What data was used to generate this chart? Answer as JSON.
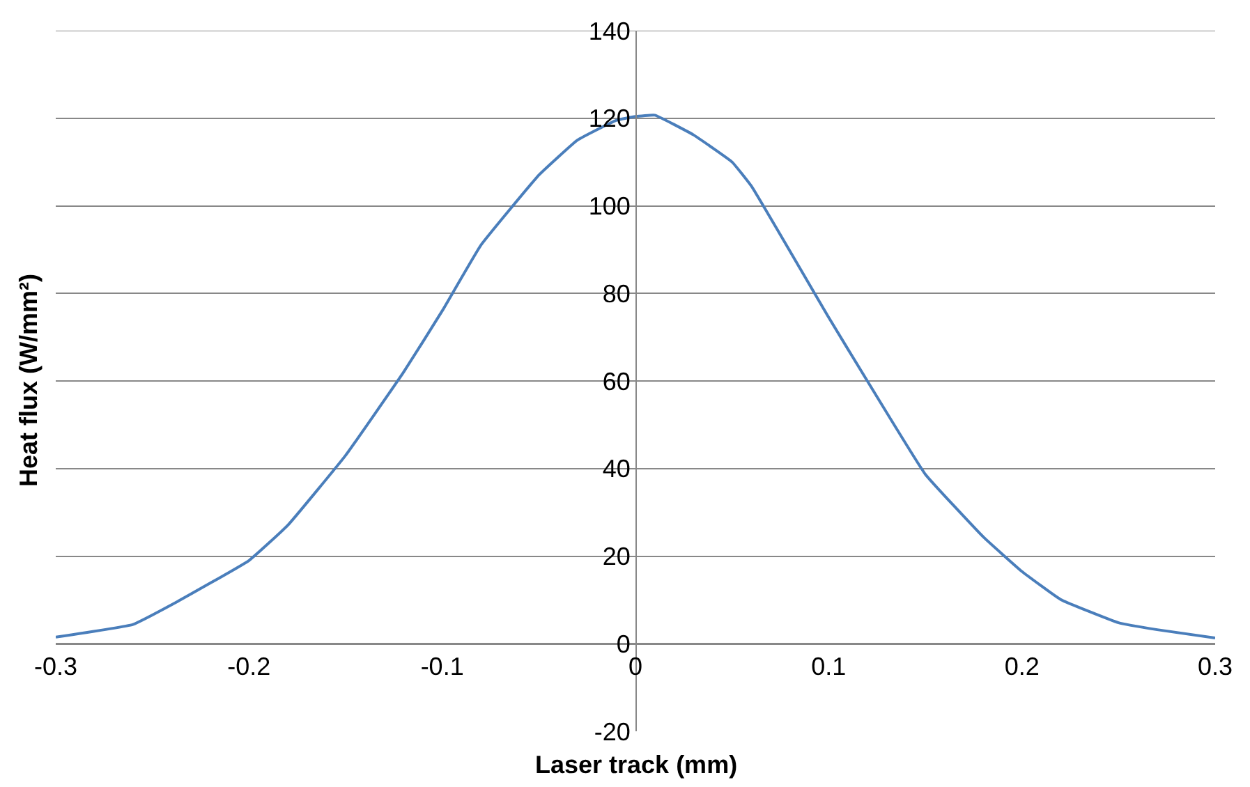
{
  "chart_data": {
    "type": "line",
    "xlabel": "Laser track (mm)",
    "ylabel": "Heat flux (W/mm²)",
    "x": [
      -0.3,
      -0.26,
      -0.24,
      -0.2,
      -0.18,
      -0.15,
      -0.12,
      -0.1,
      -0.08,
      -0.05,
      -0.03,
      -0.01,
      0,
      0.01,
      0.03,
      0.05,
      0.06,
      0.1,
      0.12,
      0.15,
      0.18,
      0.2,
      0.22,
      0.25,
      0.27,
      0.3
    ],
    "series": [
      {
        "color": "#4a7ebb",
        "values": [
          1.5,
          4.4,
          8.9,
          19,
          27,
          43,
          62,
          76,
          91,
          107,
          115,
          119.5,
          120.4,
          120.7,
          116.2,
          110,
          104.5,
          74.5,
          60,
          38.7,
          24.4,
          16.5,
          10.1,
          4.8,
          3.2,
          1.3
        ]
      }
    ],
    "xlim": [
      -0.3,
      0.3
    ],
    "xticks": [
      -0.3,
      -0.2,
      -0.1,
      0,
      0.1,
      0.2,
      0.3
    ],
    "ylim": [
      -20,
      140
    ],
    "yticks": [
      -20,
      0,
      20,
      40,
      60,
      80,
      100,
      120,
      140
    ],
    "grid": "y",
    "marker": "none",
    "line_style": "solid"
  }
}
